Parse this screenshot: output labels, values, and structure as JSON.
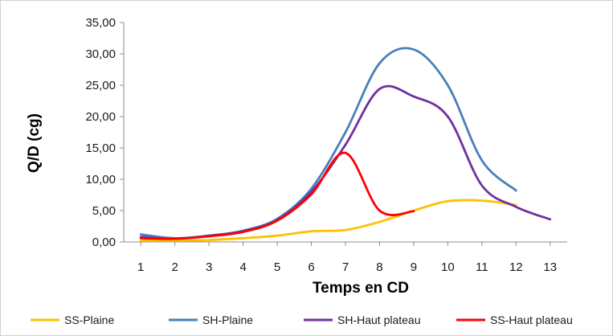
{
  "chart_data": {
    "type": "line",
    "xlabel": "Temps en CD",
    "ylabel": "Q/D (cg)",
    "x": [
      1,
      2,
      3,
      4,
      5,
      6,
      7,
      8,
      9,
      10,
      11,
      12,
      13
    ],
    "ylim": [
      0,
      35
    ],
    "yticks": [
      "0,00",
      "5,00",
      "10,00",
      "15,00",
      "20,00",
      "25,00",
      "30,00",
      "35,00"
    ],
    "xticks": [
      "1",
      "2",
      "3",
      "4",
      "5",
      "6",
      "7",
      "8",
      "9",
      "10",
      "11",
      "12",
      "13"
    ],
    "legend_position": "bottom",
    "grid": false,
    "series": [
      {
        "name": "SS-Plaine",
        "color": "#FFC000",
        "points": [
          [
            1,
            0.2
          ],
          [
            2,
            0.2
          ],
          [
            3,
            0.3
          ],
          [
            4,
            0.6
          ],
          [
            5,
            1.0
          ],
          [
            6,
            1.7
          ],
          [
            7,
            1.9
          ],
          [
            8,
            3.2
          ],
          [
            9,
            5.0
          ],
          [
            10,
            6.5
          ],
          [
            11,
            6.6
          ],
          [
            12,
            5.9
          ]
        ]
      },
      {
        "name": "SH-Plaine",
        "color": "#4A7EBB",
        "points": [
          [
            1,
            1.2
          ],
          [
            2,
            0.6
          ],
          [
            3,
            1.0
          ],
          [
            4,
            1.8
          ],
          [
            5,
            3.7
          ],
          [
            6,
            8.5
          ],
          [
            7,
            17.5
          ],
          [
            8,
            28.5
          ],
          [
            9,
            30.7
          ],
          [
            10,
            25.0
          ],
          [
            11,
            13.0
          ],
          [
            12,
            8.2
          ]
        ]
      },
      {
        "name": "SH-Haut plateau",
        "color": "#7030A0",
        "points": [
          [
            1,
            0.8
          ],
          [
            2,
            0.5
          ],
          [
            3,
            1.0
          ],
          [
            4,
            1.7
          ],
          [
            5,
            3.5
          ],
          [
            6,
            8.0
          ],
          [
            7,
            15.5
          ],
          [
            8,
            24.4
          ],
          [
            9,
            23.2
          ],
          [
            10,
            20.0
          ],
          [
            11,
            9.0
          ],
          [
            12,
            5.6
          ],
          [
            13,
            3.6
          ]
        ]
      },
      {
        "name": "SS-Haut plateau",
        "color": "#FF0000",
        "points": [
          [
            1,
            0.6
          ],
          [
            2,
            0.5
          ],
          [
            3,
            0.9
          ],
          [
            4,
            1.6
          ],
          [
            5,
            3.4
          ],
          [
            6,
            7.6
          ],
          [
            7,
            14.2
          ],
          [
            8,
            5.0
          ],
          [
            9,
            4.9
          ]
        ]
      }
    ]
  }
}
